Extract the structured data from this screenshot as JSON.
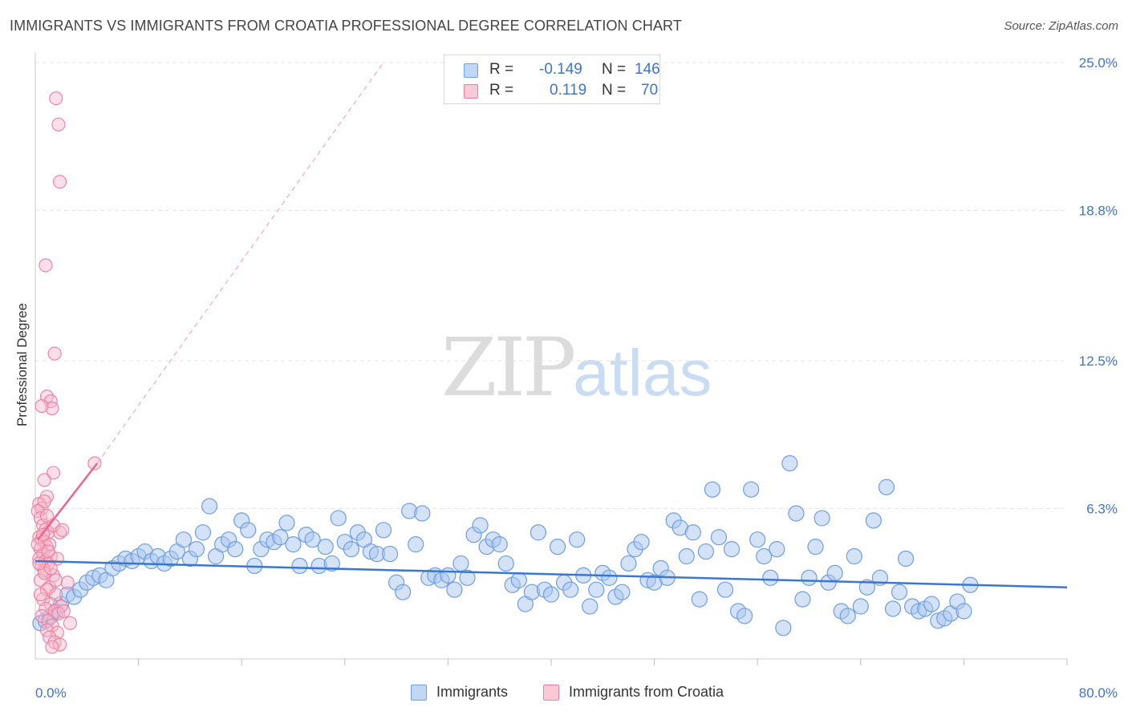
{
  "header": {
    "title": "IMMIGRANTS VS IMMIGRANTS FROM CROATIA PROFESSIONAL DEGREE CORRELATION CHART",
    "source": "Source: ZipAtlas.com"
  },
  "watermark": {
    "zip": "ZIP",
    "atlas": "atlas"
  },
  "legend_top": {
    "rows": [
      {
        "r_label": "R =",
        "r_value": "-0.149",
        "n_label": "N =",
        "n_value": "146"
      },
      {
        "r_label": "R =",
        "r_value": "0.119",
        "n_label": "N =",
        "n_value": "70"
      }
    ]
  },
  "colors": {
    "blue_fill": "#a9c6ef",
    "blue_stroke": "#6e9ee0",
    "blue_line": "#3a78d0",
    "pink_fill": "#f7b9cc",
    "pink_stroke": "#ea7fa0",
    "pink_line": "#e8678d",
    "grid": "#e4e4e4",
    "axis_text": "#3f74c9"
  },
  "chart_data": {
    "type": "scatter",
    "title": "IMMIGRANTS VS IMMIGRANTS FROM CROATIA PROFESSIONAL DEGREE CORRELATION CHART",
    "xlabel": "",
    "ylabel": "Professional Degree",
    "xlim": [
      0,
      80
    ],
    "ylim": [
      0,
      25
    ],
    "x_tick_labels": [
      "0.0%",
      "80.0%"
    ],
    "y_ticks": [
      6.3,
      12.5,
      18.8,
      25.0
    ],
    "y_tick_labels": [
      "6.3%",
      "12.5%",
      "18.8%",
      "25.0%"
    ],
    "grid": true,
    "legend_position": "bottom",
    "series": [
      {
        "name": "Immigrants",
        "color": "#a9c6ef",
        "r": -0.149,
        "n": 146,
        "trend": {
          "x": [
            0,
            80
          ],
          "y": [
            4.1,
            3.0
          ]
        },
        "points": [
          [
            0.4,
            1.5
          ],
          [
            0.8,
            1.6
          ],
          [
            1.2,
            1.8
          ],
          [
            1.6,
            2.0
          ],
          [
            2.0,
            2.3
          ],
          [
            2.5,
            2.7
          ],
          [
            3.0,
            2.6
          ],
          [
            3.5,
            2.9
          ],
          [
            4.0,
            3.2
          ],
          [
            4.5,
            3.4
          ],
          [
            5.0,
            3.5
          ],
          [
            5.5,
            3.3
          ],
          [
            6.0,
            3.8
          ],
          [
            6.5,
            4.0
          ],
          [
            7.0,
            4.2
          ],
          [
            7.5,
            4.1
          ],
          [
            8.0,
            4.3
          ],
          [
            8.5,
            4.5
          ],
          [
            9.0,
            4.1
          ],
          [
            9.5,
            4.3
          ],
          [
            10.0,
            4.0
          ],
          [
            10.5,
            4.2
          ],
          [
            11.0,
            4.5
          ],
          [
            11.5,
            5.0
          ],
          [
            12.0,
            4.2
          ],
          [
            12.5,
            4.6
          ],
          [
            13.0,
            5.3
          ],
          [
            13.5,
            6.4
          ],
          [
            14.0,
            4.3
          ],
          [
            14.5,
            4.8
          ],
          [
            15.0,
            5.0
          ],
          [
            15.5,
            4.6
          ],
          [
            16.0,
            5.8
          ],
          [
            16.5,
            5.4
          ],
          [
            17.0,
            3.9
          ],
          [
            17.5,
            4.6
          ],
          [
            18.0,
            5.0
          ],
          [
            18.5,
            4.9
          ],
          [
            19.0,
            5.1
          ],
          [
            19.5,
            5.7
          ],
          [
            20.0,
            4.8
          ],
          [
            20.5,
            3.9
          ],
          [
            21.0,
            5.2
          ],
          [
            21.5,
            5.0
          ],
          [
            22.0,
            3.9
          ],
          [
            22.5,
            4.7
          ],
          [
            23.0,
            4.0
          ],
          [
            23.5,
            5.9
          ],
          [
            24.0,
            4.9
          ],
          [
            24.5,
            4.6
          ],
          [
            25.0,
            5.3
          ],
          [
            25.5,
            5.0
          ],
          [
            26.0,
            4.5
          ],
          [
            26.5,
            4.4
          ],
          [
            27.0,
            5.4
          ],
          [
            27.5,
            4.4
          ],
          [
            28.0,
            3.2
          ],
          [
            28.5,
            2.8
          ],
          [
            29.0,
            6.2
          ],
          [
            29.5,
            4.8
          ],
          [
            30.0,
            6.1
          ],
          [
            30.5,
            3.4
          ],
          [
            31.0,
            3.5
          ],
          [
            31.5,
            3.3
          ],
          [
            32.0,
            3.5
          ],
          [
            32.5,
            2.9
          ],
          [
            33.0,
            4.0
          ],
          [
            33.5,
            3.4
          ],
          [
            34.0,
            5.2
          ],
          [
            34.5,
            5.6
          ],
          [
            35.0,
            4.7
          ],
          [
            35.5,
            5.0
          ],
          [
            36.0,
            4.8
          ],
          [
            36.5,
            4.0
          ],
          [
            37.0,
            3.1
          ],
          [
            37.5,
            3.3
          ],
          [
            38.0,
            2.3
          ],
          [
            38.5,
            2.8
          ],
          [
            39.0,
            5.3
          ],
          [
            39.5,
            2.9
          ],
          [
            40.0,
            2.7
          ],
          [
            40.5,
            4.7
          ],
          [
            41.0,
            3.2
          ],
          [
            41.5,
            2.9
          ],
          [
            42.0,
            5.0
          ],
          [
            42.5,
            3.5
          ],
          [
            43.0,
            2.2
          ],
          [
            43.5,
            2.9
          ],
          [
            44.0,
            3.6
          ],
          [
            44.5,
            3.4
          ],
          [
            45.0,
            2.6
          ],
          [
            45.5,
            2.8
          ],
          [
            46.0,
            4.0
          ],
          [
            46.5,
            4.6
          ],
          [
            47.0,
            4.9
          ],
          [
            47.5,
            3.3
          ],
          [
            48.0,
            3.2
          ],
          [
            48.5,
            3.8
          ],
          [
            49.0,
            3.4
          ],
          [
            49.5,
            5.8
          ],
          [
            50.0,
            5.5
          ],
          [
            50.5,
            4.3
          ],
          [
            51.0,
            5.3
          ],
          [
            51.5,
            2.5
          ],
          [
            52.0,
            4.5
          ],
          [
            52.5,
            7.1
          ],
          [
            53.0,
            5.1
          ],
          [
            53.5,
            2.9
          ],
          [
            54.0,
            4.6
          ],
          [
            54.5,
            2.0
          ],
          [
            55.0,
            1.8
          ],
          [
            55.5,
            7.1
          ],
          [
            56.0,
            5.0
          ],
          [
            56.5,
            4.3
          ],
          [
            57.0,
            3.4
          ],
          [
            57.5,
            4.6
          ],
          [
            58.0,
            1.3
          ],
          [
            58.5,
            8.2
          ],
          [
            59.0,
            6.1
          ],
          [
            59.5,
            2.5
          ],
          [
            60.0,
            3.4
          ],
          [
            60.5,
            4.7
          ],
          [
            61.0,
            5.9
          ],
          [
            61.5,
            3.2
          ],
          [
            62.0,
            3.6
          ],
          [
            62.5,
            2.0
          ],
          [
            63.0,
            1.8
          ],
          [
            63.5,
            4.3
          ],
          [
            64.0,
            2.2
          ],
          [
            64.5,
            3.0
          ],
          [
            65.0,
            5.8
          ],
          [
            65.5,
            3.4
          ],
          [
            66.0,
            7.2
          ],
          [
            66.5,
            2.1
          ],
          [
            67.0,
            2.8
          ],
          [
            67.5,
            4.2
          ],
          [
            68.0,
            2.2
          ],
          [
            68.5,
            2.0
          ],
          [
            69.0,
            2.1
          ],
          [
            69.5,
            2.3
          ],
          [
            70.0,
            1.6
          ],
          [
            70.5,
            1.7
          ],
          [
            71.0,
            1.9
          ],
          [
            71.5,
            2.4
          ],
          [
            72.0,
            2.0
          ],
          [
            72.5,
            3.1
          ]
        ]
      },
      {
        "name": "Immigrants from Croatia",
        "color": "#f7b9cc",
        "r": 0.119,
        "n": 70,
        "trend": {
          "x": [
            0.2,
            4.8
          ],
          "y": [
            5.0,
            8.2
          ]
        },
        "trend_extension": {
          "x": [
            4.8,
            27
          ],
          "y": [
            8.2,
            25.0
          ]
        },
        "points": [
          [
            1.6,
            23.5
          ],
          [
            1.8,
            22.4
          ],
          [
            1.9,
            20.0
          ],
          [
            0.8,
            16.5
          ],
          [
            1.5,
            12.8
          ],
          [
            0.9,
            11.0
          ],
          [
            1.2,
            10.8
          ],
          [
            1.3,
            10.5
          ],
          [
            0.5,
            10.6
          ],
          [
            1.4,
            7.8
          ],
          [
            0.7,
            7.5
          ],
          [
            0.9,
            6.8
          ],
          [
            0.3,
            6.5
          ],
          [
            0.5,
            6.3
          ],
          [
            0.7,
            6.6
          ],
          [
            0.2,
            6.2
          ],
          [
            0.4,
            5.9
          ],
          [
            0.6,
            5.6
          ],
          [
            0.8,
            5.4
          ],
          [
            1.0,
            5.3
          ],
          [
            1.9,
            5.3
          ],
          [
            0.3,
            5.1
          ],
          [
            0.5,
            5.0
          ],
          [
            0.7,
            4.9
          ],
          [
            0.9,
            4.7
          ],
          [
            1.1,
            4.8
          ],
          [
            0.4,
            4.6
          ],
          [
            0.6,
            4.4
          ],
          [
            1.2,
            4.3
          ],
          [
            0.3,
            4.2
          ],
          [
            0.8,
            4.1
          ],
          [
            1.0,
            4.0
          ],
          [
            0.5,
            3.9
          ],
          [
            0.7,
            3.7
          ],
          [
            1.4,
            3.5
          ],
          [
            0.4,
            3.3
          ],
          [
            1.1,
            3.0
          ],
          [
            2.5,
            3.2
          ],
          [
            0.9,
            2.9
          ],
          [
            1.6,
            2.7
          ],
          [
            0.6,
            2.5
          ],
          [
            1.2,
            2.3
          ],
          [
            2.0,
            2.2
          ],
          [
            0.8,
            2.1
          ],
          [
            1.5,
            2.0
          ],
          [
            1.8,
            1.9
          ],
          [
            0.5,
            1.8
          ],
          [
            1.0,
            1.6
          ],
          [
            1.3,
            1.4
          ],
          [
            2.7,
            1.5
          ],
          [
            0.9,
            1.2
          ],
          [
            1.7,
            1.1
          ],
          [
            1.1,
            0.9
          ],
          [
            1.5,
            0.7
          ],
          [
            1.9,
            0.6
          ],
          [
            1.3,
            0.5
          ],
          [
            0.7,
            3.6
          ],
          [
            1.6,
            3.3
          ],
          [
            0.4,
            2.7
          ],
          [
            2.2,
            2.0
          ],
          [
            1.0,
            4.5
          ],
          [
            0.2,
            4.8
          ],
          [
            1.7,
            4.2
          ],
          [
            0.6,
            5.2
          ],
          [
            1.4,
            5.6
          ],
          [
            0.9,
            6.0
          ],
          [
            2.1,
            5.4
          ],
          [
            0.3,
            4.0
          ],
          [
            1.2,
            3.8
          ],
          [
            4.6,
            8.2
          ]
        ]
      }
    ]
  },
  "legend_bottom": {
    "items": [
      {
        "label": "Immigrants"
      },
      {
        "label": "Immigrants from Croatia"
      }
    ]
  }
}
